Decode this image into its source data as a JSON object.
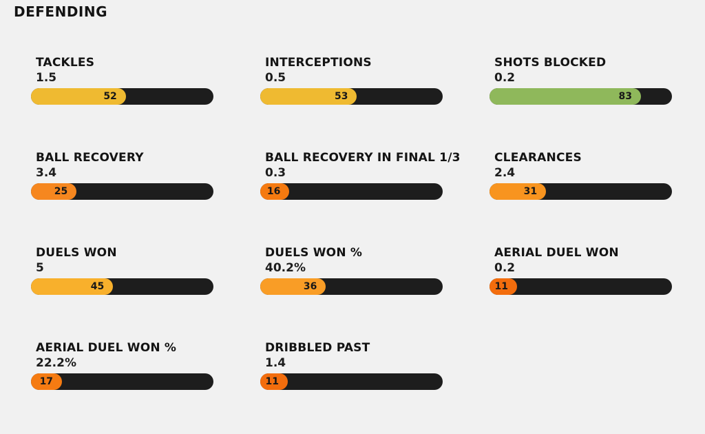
{
  "page": {
    "title": "DEFENDING",
    "background_color": "#f1f1f1",
    "track_color": "#1d1d1d"
  },
  "stats": [
    {
      "label": "TACKLES",
      "value": "1.5",
      "percentile": 52,
      "color": "#efba31"
    },
    {
      "label": "INTERCEPTIONS",
      "value": "0.5",
      "percentile": 53,
      "color": "#efba31"
    },
    {
      "label": "SHOTS BLOCKED",
      "value": "0.2",
      "percentile": 83,
      "color": "#8fb85b"
    },
    {
      "label": "BALL RECOVERY",
      "value": "3.4",
      "percentile": 25,
      "color": "#f6871f"
    },
    {
      "label": "BALL RECOVERY IN FINAL 1/3",
      "value": "0.3",
      "percentile": 16,
      "color": "#f57a10"
    },
    {
      "label": "CLEARANCES",
      "value": "2.4",
      "percentile": 31,
      "color": "#f8941f"
    },
    {
      "label": "DUELS WON",
      "value": "5",
      "percentile": 45,
      "color": "#f8b02c"
    },
    {
      "label": "DUELS WON %",
      "value": "40.2%",
      "percentile": 36,
      "color": "#f99d26"
    },
    {
      "label": "AERIAL DUEL WON",
      "value": "0.2",
      "percentile": 11,
      "color": "#f36d0d"
    },
    {
      "label": "AERIAL DUEL WON %",
      "value": "22.2%",
      "percentile": 17,
      "color": "#f57b12"
    },
    {
      "label": "DRIBBLED PAST",
      "value": "1.4",
      "percentile": 11,
      "color": "#f36d0d"
    }
  ],
  "chart_data": {
    "type": "bar",
    "title": "DEFENDING",
    "orientation": "horizontal",
    "categories": [
      "TACKLES",
      "INTERCEPTIONS",
      "SHOTS BLOCKED",
      "BALL RECOVERY",
      "BALL RECOVERY IN FINAL 1/3",
      "CLEARANCES",
      "DUELS WON",
      "DUELS WON %",
      "AERIAL DUEL WON",
      "AERIAL DUEL WON %",
      "DRIBBLED PAST"
    ],
    "series": [
      {
        "name": "stat value (shown as text)",
        "values": [
          1.5,
          0.5,
          0.2,
          3.4,
          0.3,
          2.4,
          5,
          40.2,
          0.2,
          22.2,
          1.4
        ]
      },
      {
        "name": "percentile (bar fill)",
        "values": [
          52,
          53,
          83,
          25,
          16,
          31,
          45,
          36,
          11,
          17,
          11
        ]
      }
    ],
    "xlim": [
      0,
      100
    ],
    "grid": false,
    "legend": false,
    "bar_colors": [
      "#efba31",
      "#efba31",
      "#8fb85b",
      "#f6871f",
      "#f57a10",
      "#f8941f",
      "#f8b02c",
      "#f99d26",
      "#f36d0d",
      "#f57b12",
      "#f36d0d"
    ],
    "track_color": "#1d1d1d"
  }
}
